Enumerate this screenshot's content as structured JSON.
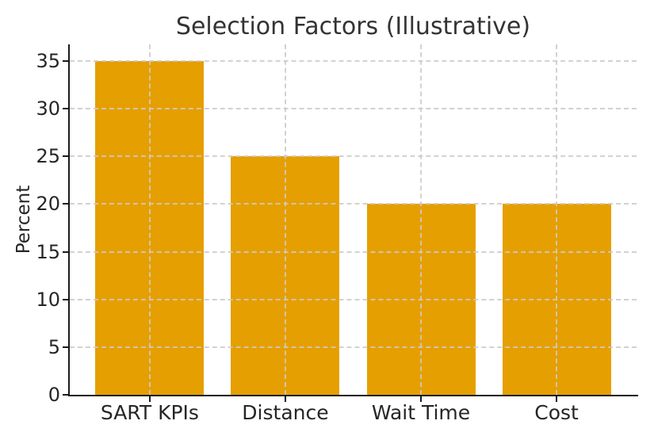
{
  "chart_data": {
    "type": "bar",
    "title": "Selection Factors (Illustrative)",
    "xlabel": "",
    "ylabel": "Percent",
    "categories": [
      "SART KPIs",
      "Distance",
      "Wait Time",
      "Cost"
    ],
    "values": [
      35,
      25,
      20,
      20
    ],
    "yticks": [
      0,
      5,
      10,
      15,
      20,
      25,
      30,
      35
    ],
    "ylim": [
      0,
      36.75
    ],
    "grid": true,
    "grid_style": "dashed",
    "legend_position": "none",
    "colors": {
      "bar": "#E69F00",
      "grid": "#cacaca",
      "axis": "#1a1a1a",
      "tick_text": "#262626",
      "title_text": "#333333",
      "background": "#ffffff"
    }
  }
}
